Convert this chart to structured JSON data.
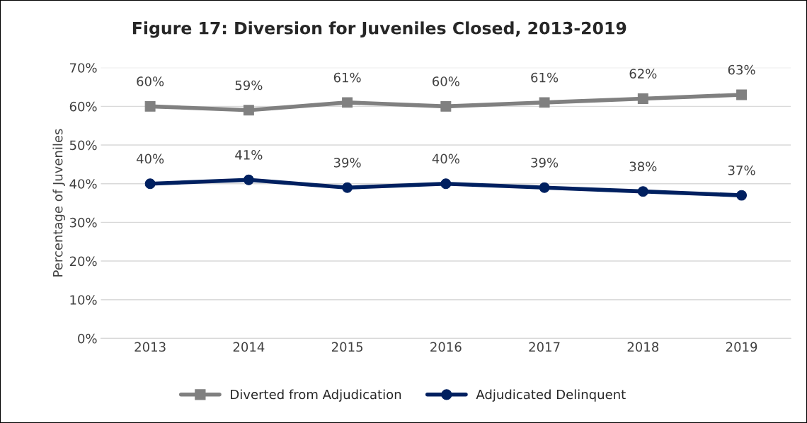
{
  "chart_data": {
    "type": "line",
    "title": "Figure 17: Diversion for Juveniles Closed, 2013-2019",
    "ylabel": "Percentage of Juveniles",
    "categories": [
      "2013",
      "2014",
      "2015",
      "2016",
      "2017",
      "2018",
      "2019"
    ],
    "series": [
      {
        "name": "Diverted from Adjudication",
        "color": "#808080",
        "marker": "square",
        "values": [
          60,
          59,
          61,
          60,
          61,
          62,
          63
        ],
        "value_labels": [
          "60%",
          "59%",
          "61%",
          "60%",
          "61%",
          "62%",
          "63%"
        ]
      },
      {
        "name": "Adjudicated Delinquent",
        "color": "#002060",
        "marker": "circle",
        "values": [
          40,
          41,
          39,
          40,
          39,
          38,
          37
        ],
        "value_labels": [
          "40%",
          "41%",
          "39%",
          "40%",
          "39%",
          "38%",
          "37%"
        ]
      }
    ],
    "ylim": [
      0,
      70
    ],
    "yticks": [
      {
        "value": 0,
        "label": "0%"
      },
      {
        "value": 10,
        "label": "10%"
      },
      {
        "value": 20,
        "label": "20%"
      },
      {
        "value": 30,
        "label": "30%"
      },
      {
        "value": 40,
        "label": "40%"
      },
      {
        "value": 50,
        "label": "50%"
      },
      {
        "value": 60,
        "label": "60%"
      },
      {
        "value": 70,
        "label": "70%"
      }
    ],
    "grid": "y",
    "legend": "bottom",
    "line_style": "solid"
  }
}
